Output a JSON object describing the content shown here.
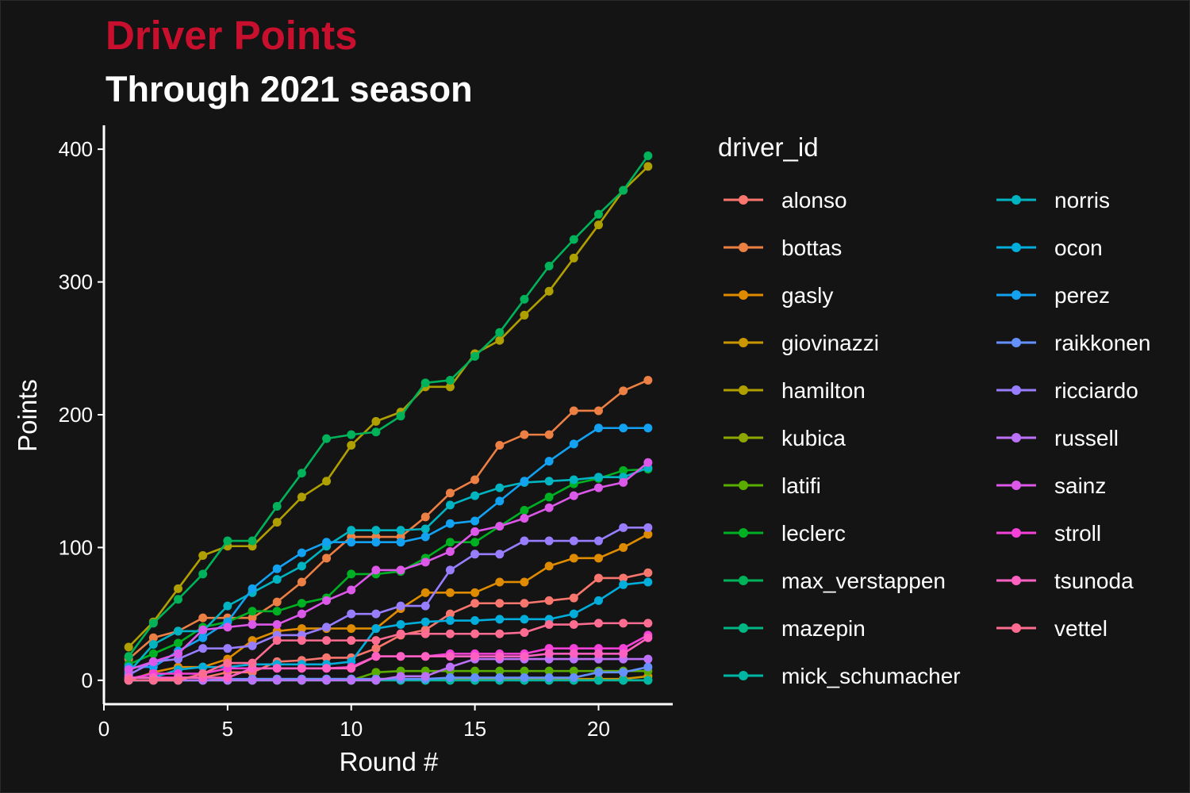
{
  "chart_data": {
    "type": "line",
    "title": "Driver Points",
    "subtitle": "Through 2021 season",
    "xlabel": "Round #",
    "ylabel": "Points",
    "xlim": [
      0,
      23
    ],
    "ylim": [
      -18,
      418
    ],
    "x_ticks": [
      0,
      5,
      10,
      15,
      20
    ],
    "y_ticks": [
      0,
      100,
      200,
      300,
      400
    ],
    "grid": false,
    "legend": {
      "title": "driver_id",
      "position": "right",
      "columns": 2
    },
    "colors": {
      "background": "#141414",
      "title": "#c8102e",
      "text": "#ffffff",
      "axis": "#ffffff"
    },
    "x": [
      1,
      2,
      3,
      4,
      5,
      6,
      7,
      8,
      9,
      10,
      11,
      12,
      13,
      14,
      15,
      16,
      17,
      18,
      19,
      20,
      21,
      22
    ],
    "series": [
      {
        "name": "alonso",
        "color": "#F8766D",
        "values": [
          0,
          0,
          2,
          2,
          6,
          6,
          14,
          15,
          17,
          17,
          24,
          34,
          38,
          50,
          58,
          58,
          58,
          60,
          62,
          77,
          77,
          81
        ]
      },
      {
        "name": "bottas",
        "color": "#EC7F43",
        "values": [
          16,
          32,
          37,
          47,
          47,
          47,
          59,
          74,
          92,
          108,
          108,
          108,
          123,
          141,
          151,
          177,
          185,
          185,
          203,
          203,
          218,
          226
        ]
      },
      {
        "name": "gasly",
        "color": "#DE8B00",
        "values": [
          0,
          6,
          10,
          10,
          16,
          30,
          37,
          39,
          39,
          39,
          39,
          54,
          66,
          66,
          66,
          74,
          74,
          86,
          92,
          92,
          100,
          110
        ]
      },
      {
        "name": "giovinazzi",
        "color": "#CA9700",
        "values": [
          0,
          0,
          0,
          0,
          0,
          1,
          1,
          1,
          1,
          1,
          1,
          1,
          1,
          1,
          1,
          1,
          1,
          1,
          1,
          1,
          1,
          3
        ]
      },
      {
        "name": "hamilton",
        "color": "#B09F00",
        "values": [
          25,
          44,
          69,
          94,
          101,
          101,
          119,
          138,
          150,
          177,
          195,
          202,
          221,
          221,
          246,
          256,
          275,
          293,
          318,
          343,
          369,
          387
        ]
      },
      {
        "name": "kubica",
        "color": "#8EA700",
        "values": [
          0,
          0,
          0,
          0,
          0,
          0,
          0,
          0,
          0,
          0,
          0,
          0,
          0,
          0,
          0,
          0,
          0,
          0,
          0,
          0,
          0,
          0
        ]
      },
      {
        "name": "latifi",
        "color": "#5AAD00",
        "values": [
          0,
          0,
          0,
          0,
          0,
          0,
          0,
          0,
          0,
          0,
          6,
          7,
          7,
          7,
          7,
          7,
          7,
          7,
          7,
          7,
          7,
          7
        ]
      },
      {
        "name": "leclerc",
        "color": "#00B023",
        "values": [
          12,
          20,
          28,
          40,
          44,
          52,
          52,
          58,
          62,
          80,
          80,
          82,
          92,
          104,
          104,
          116,
          128,
          138,
          148,
          152,
          158,
          159
        ]
      },
      {
        "name": "max_verstappen",
        "color": "#00B35B",
        "values": [
          18,
          43,
          61,
          80,
          105,
          105,
          131,
          156,
          182,
          185,
          187,
          199,
          224,
          226,
          244,
          262,
          287,
          312,
          332,
          351,
          369,
          395
        ]
      },
      {
        "name": "mazepin",
        "color": "#00B683",
        "values": [
          0,
          0,
          0,
          0,
          0,
          0,
          0,
          0,
          0,
          0,
          0,
          0,
          0,
          0,
          0,
          0,
          0,
          0,
          0,
          0,
          0,
          0
        ]
      },
      {
        "name": "mick_schumacher",
        "color": "#00B7A3",
        "values": [
          0,
          0,
          0,
          0,
          0,
          0,
          0,
          0,
          0,
          0,
          0,
          0,
          0,
          0,
          0,
          0,
          0,
          0,
          0,
          0,
          0,
          0
        ]
      },
      {
        "name": "norris",
        "color": "#00B4C1",
        "values": [
          6,
          27,
          37,
          37,
          56,
          66,
          76,
          86,
          101,
          113,
          113,
          113,
          114,
          132,
          139,
          145,
          149,
          150,
          151,
          153,
          153,
          160
        ]
      },
      {
        "name": "ocon",
        "color": "#00ADDB",
        "values": [
          2,
          2,
          8,
          10,
          10,
          12,
          12,
          12,
          12,
          14,
          39,
          42,
          44,
          45,
          45,
          46,
          46,
          46,
          50,
          60,
          72,
          74
        ]
      },
      {
        "name": "perez",
        "color": "#12A2F1",
        "values": [
          10,
          10,
          22,
          32,
          44,
          69,
          84,
          96,
          104,
          104,
          104,
          104,
          108,
          118,
          120,
          135,
          150,
          165,
          178,
          190,
          190,
          190
        ]
      },
      {
        "name": "raikkonen",
        "color": "#6591FF",
        "values": [
          0,
          0,
          0,
          0,
          1,
          1,
          1,
          1,
          1,
          1,
          1,
          1,
          1,
          2,
          2,
          2,
          2,
          2,
          2,
          6,
          6,
          10
        ]
      },
      {
        "name": "ricciardo",
        "color": "#987EFF",
        "values": [
          4,
          14,
          16,
          24,
          24,
          26,
          34,
          34,
          40,
          50,
          50,
          56,
          56,
          83,
          95,
          95,
          105,
          105,
          105,
          105,
          115,
          115
        ]
      },
      {
        "name": "russell",
        "color": "#BC71F9",
        "values": [
          0,
          0,
          0,
          0,
          0,
          0,
          0,
          0,
          0,
          0,
          0,
          3,
          3,
          10,
          16,
          16,
          16,
          16,
          16,
          16,
          16,
          16
        ]
      },
      {
        "name": "sainz",
        "color": "#DC58E9",
        "values": [
          8,
          14,
          20,
          38,
          40,
          42,
          42,
          50,
          60,
          68,
          83,
          83,
          89,
          97,
          112,
          116,
          122,
          130,
          139,
          145,
          149,
          164
        ]
      },
      {
        "name": "stroll",
        "color": "#F442D9",
        "values": [
          1,
          5,
          5,
          5,
          9,
          9,
          9,
          9,
          9,
          10,
          18,
          18,
          18,
          20,
          20,
          20,
          20,
          24,
          24,
          24,
          24,
          34
        ]
      },
      {
        "name": "tsunoda",
        "color": "#FF61C3",
        "values": [
          2,
          2,
          2,
          2,
          2,
          9,
          9,
          9,
          9,
          9,
          18,
          18,
          18,
          18,
          18,
          18,
          18,
          20,
          20,
          20,
          20,
          32
        ]
      },
      {
        "name": "vettel",
        "color": "#FF6C91",
        "values": [
          0,
          0,
          0,
          5,
          13,
          13,
          30,
          30,
          30,
          30,
          30,
          35,
          35,
          35,
          35,
          35,
          36,
          42,
          42,
          43,
          43,
          43
        ]
      }
    ]
  }
}
